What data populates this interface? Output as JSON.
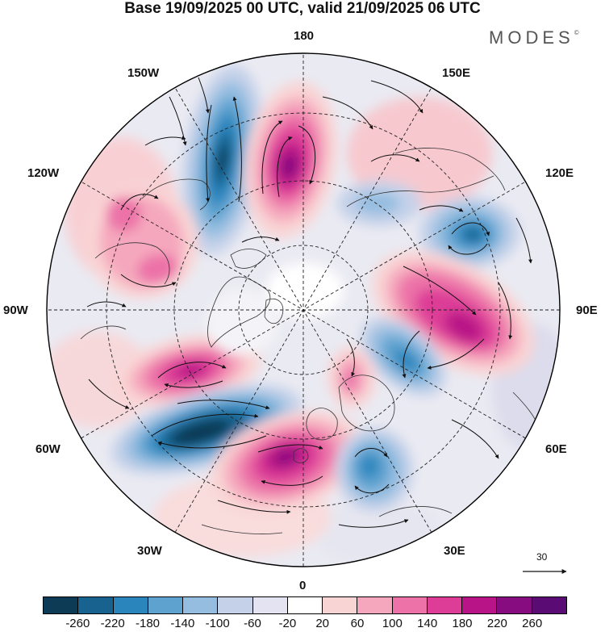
{
  "title": "Base 19/09/2025 00 UTC, valid 21/09/2025 06 UTC",
  "brand": {
    "name": "MODES",
    "mark": "©"
  },
  "longitude_labels": {
    "lon_180": "180",
    "lon_150e": "150E",
    "lon_120e": "120E",
    "lon_90e": "90E",
    "lon_60e": "60E",
    "lon_30e": "30E",
    "lon_0": "0",
    "lon_30w": "30W",
    "lon_60w": "60W",
    "lon_90w": "90W",
    "lon_120w": "120W",
    "lon_150w": "150W"
  },
  "reference_vector": {
    "label": "30"
  },
  "colorbar": {
    "colors": [
      "#0d3a55",
      "#17628f",
      "#2b85bd",
      "#5ea3d0",
      "#95bde0",
      "#c4d1e9",
      "#e3e3f1",
      "#ffffff",
      "#f9d4d4",
      "#f5a8bd",
      "#ec72a8",
      "#dd3d97",
      "#b91487",
      "#860c80",
      "#5a0c74"
    ],
    "ticks": [
      "-260",
      "-220",
      "-180",
      "-140",
      "-100",
      "-60",
      "-20",
      "20",
      "60",
      "100",
      "140",
      "180",
      "220",
      "260"
    ]
  },
  "map_data": {
    "projection": "north-polar-stereographic",
    "field": "anomaly",
    "anomaly_centers": [
      {
        "region": "north Pacific near 160W",
        "sign": "negative",
        "magnitude": "strong"
      },
      {
        "region": "bering / near 170E",
        "sign": "positive",
        "magnitude": "strong"
      },
      {
        "region": "western Canada",
        "sign": "positive",
        "magnitude": "moderate"
      },
      {
        "region": "east Siberia 120E",
        "sign": "negative",
        "magnitude": "moderate"
      },
      {
        "region": "central Siberia 90E",
        "sign": "positive",
        "magnitude": "strong"
      },
      {
        "region": "north Atlantic near 50W",
        "sign": "negative",
        "magnitude": "strong"
      },
      {
        "region": "east Canada 75W",
        "sign": "positive",
        "magnitude": "moderate"
      },
      {
        "region": "northeast Atlantic 10W",
        "sign": "positive",
        "magnitude": "strong"
      },
      {
        "region": "scandinavia/russia 60E",
        "sign": "negative",
        "magnitude": "moderate"
      },
      {
        "region": "europe 25E",
        "sign": "negative",
        "magnitude": "moderate"
      }
    ]
  }
}
